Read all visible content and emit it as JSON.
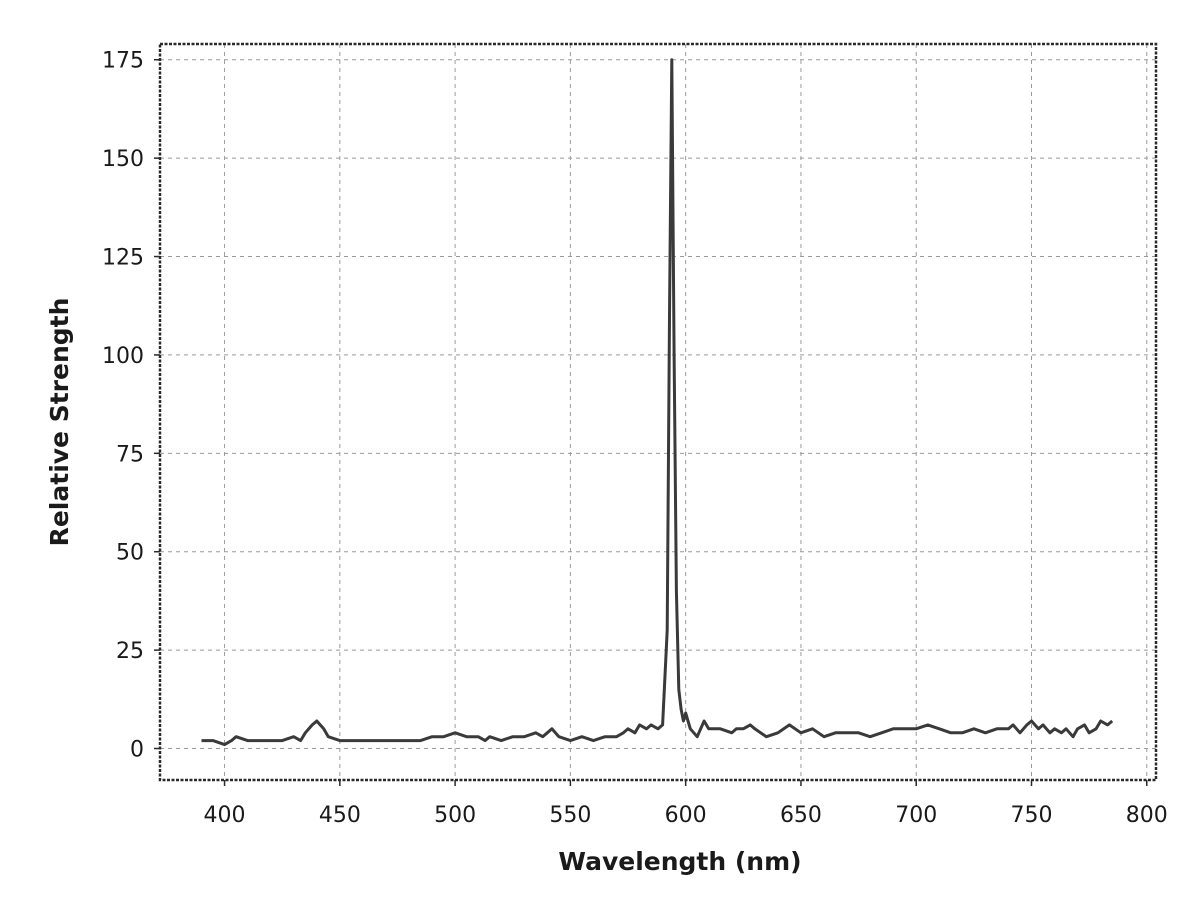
{
  "chart_data": {
    "type": "line",
    "title": "",
    "xlabel": "Wavelength (nm)",
    "ylabel": "Relative Strength",
    "xlim": [
      372,
      804
    ],
    "ylim": [
      -8,
      179
    ],
    "xticks": [
      400,
      450,
      500,
      550,
      600,
      650,
      700,
      750,
      800
    ],
    "yticks": [
      0,
      25,
      50,
      75,
      100,
      125,
      150,
      175
    ],
    "grid": true,
    "line_color": "#3a3a3a",
    "series": [
      {
        "x": [
          390,
          395,
          400,
          403,
          405,
          410,
          415,
          420,
          425,
          430,
          433,
          435,
          438,
          440,
          443,
          445,
          450,
          455,
          460,
          465,
          470,
          475,
          480,
          485,
          490,
          495,
          500,
          505,
          510,
          513,
          515,
          520,
          525,
          530,
          535,
          538,
          540,
          542,
          545,
          550,
          555,
          560,
          565,
          570,
          573,
          575,
          578,
          580,
          583,
          585,
          588,
          590,
          592,
          593,
          594,
          595,
          596,
          597,
          598,
          599,
          600,
          602,
          605,
          608,
          610,
          615,
          620,
          622,
          625,
          628,
          630,
          635,
          640,
          645,
          650,
          655,
          660,
          665,
          670,
          675,
          680,
          685,
          690,
          695,
          700,
          705,
          710,
          715,
          720,
          725,
          730,
          735,
          740,
          742,
          745,
          748,
          750,
          753,
          755,
          758,
          760,
          763,
          765,
          768,
          770,
          773,
          775,
          778,
          780,
          783,
          785
        ],
        "y": [
          2,
          2,
          1,
          2,
          3,
          2,
          2,
          2,
          2,
          3,
          2,
          4,
          6,
          7,
          5,
          3,
          2,
          2,
          2,
          2,
          2,
          2,
          2,
          2,
          3,
          3,
          4,
          3,
          3,
          2,
          3,
          2,
          3,
          3,
          4,
          3,
          4,
          5,
          3,
          2,
          3,
          2,
          3,
          3,
          4,
          5,
          4,
          6,
          5,
          6,
          5,
          6,
          30,
          110,
          175,
          100,
          40,
          15,
          10,
          7,
          9,
          5,
          3,
          7,
          5,
          5,
          4,
          5,
          5,
          6,
          5,
          3,
          4,
          6,
          4,
          5,
          3,
          4,
          4,
          4,
          3,
          4,
          5,
          5,
          5,
          6,
          5,
          4,
          4,
          5,
          4,
          5,
          5,
          6,
          4,
          6,
          7,
          5,
          6,
          4,
          5,
          4,
          5,
          3,
          5,
          6,
          4,
          5,
          7,
          6,
          7
        ]
      }
    ]
  }
}
